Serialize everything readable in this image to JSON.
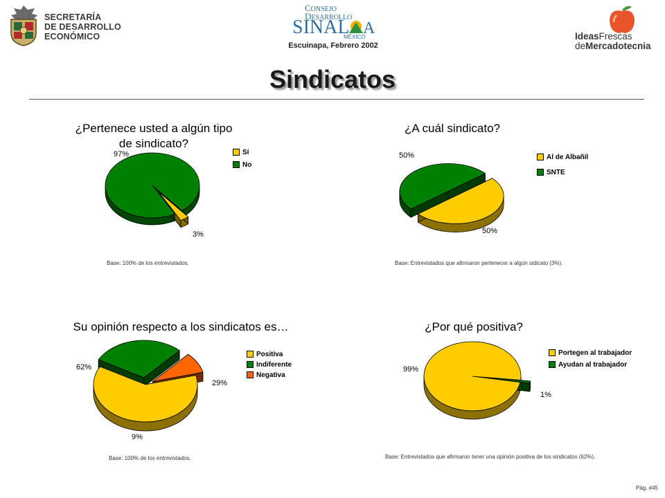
{
  "header": {
    "sde_lines": [
      "SECRETARÍA",
      "DE DESARROLLO",
      "ECONÓMICO"
    ],
    "csd_subtitle": "Escuinapa, Febrero 2002",
    "ifm_line1_bold": "Ideas",
    "ifm_line1_rest": "Frescas",
    "ifm_line2_rest": "de",
    "ifm_line2_bold": "Mercadotecnia"
  },
  "page": {
    "title": "Sindicatos",
    "page_number": "Pág. #45"
  },
  "chart_data": [
    {
      "type": "pie",
      "title": "¿Pertenece usted a algún tipo de sindicato?",
      "categories": [
        "Sí",
        "No"
      ],
      "values": [
        3,
        97
      ],
      "labels": [
        "3%",
        "97%"
      ],
      "colors": [
        "#FFCC00",
        "#008000"
      ],
      "legend": "right",
      "base_note": "Base:  100% de los entrevistados."
    },
    {
      "type": "pie",
      "title": "¿A cuál sindicato?",
      "categories": [
        "Al de Albañil",
        "SNTE"
      ],
      "values": [
        50,
        50
      ],
      "labels": [
        "50%",
        "50%"
      ],
      "colors": [
        "#FFCC00",
        "#008000"
      ],
      "legend": "right",
      "base_note": "Base:  Entrevistados que afirmaron pertenecer a algún sidicato (3%)."
    },
    {
      "type": "pie",
      "title": "Su opinión respecto a los sindicatos es…",
      "categories": [
        "Positiva",
        "Indiferente",
        "Negativa"
      ],
      "values": [
        62,
        29,
        9
      ],
      "labels": [
        "62%",
        "29%",
        "9%"
      ],
      "colors": [
        "#FFCC00",
        "#008000",
        "#FF6600"
      ],
      "legend": "right",
      "base_note": "Base:  100% de los entrevistados."
    },
    {
      "type": "pie",
      "title": "¿Por qué positiva?",
      "categories": [
        "Portegen al trabajador",
        "Ayudan al trabajador"
      ],
      "values": [
        99,
        1
      ],
      "labels": [
        "99%",
        "1%"
      ],
      "colors": [
        "#FFCC00",
        "#008000"
      ],
      "legend": "right",
      "base_note": "Base:  Entrevistados que afirmaron tener una opinión positiva de los sindicatos (62%)."
    }
  ]
}
